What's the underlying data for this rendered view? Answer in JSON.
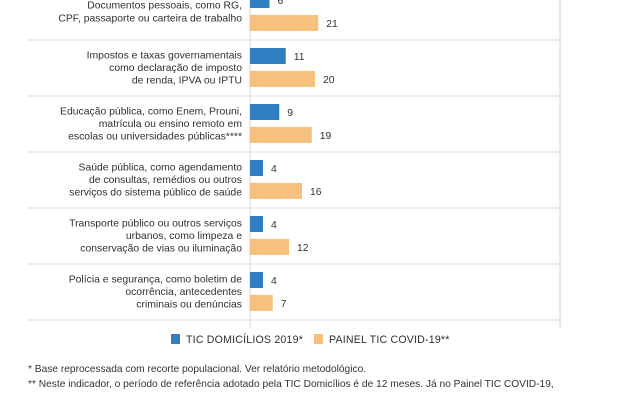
{
  "chart_data": {
    "type": "bar",
    "orientation": "horizontal",
    "categories": [
      [
        "Documentos pessoais, como RG,",
        "CPF, passaporte ou carteira de trabalho"
      ],
      [
        "Impostos e taxas governamentais",
        "como declaração de imposto",
        "de renda, IPVA ou IPTU"
      ],
      [
        "Educação pública, como Enem, Prouni,",
        "matrícula ou ensino remoto em",
        "escolas ou universidades públicas****"
      ],
      [
        "Saúde pública, como agendamento",
        "de consultas, remédios ou outros",
        "serviços do sistema público de saúde"
      ],
      [
        "Transporte público ou outros serviços",
        "urbanos, como limpeza e",
        "conservação de vias ou iluminação"
      ],
      [
        "Polícia e segurança, como boletim de",
        "ocorrência, antecedentes",
        "criminais ou denúncias"
      ]
    ],
    "series": [
      {
        "name": "TIC DOMICÍLIOS 2019*",
        "color": "#2f7fc1",
        "values": [
          6,
          11,
          9,
          4,
          4,
          4
        ]
      },
      {
        "name": "PAINEL TIC COVID-19**",
        "color": "#f6c07e",
        "values": [
          21,
          20,
          19,
          16,
          12,
          7
        ]
      }
    ],
    "xlim": [
      0,
      100
    ],
    "grid": false,
    "legend_position": "bottom"
  },
  "notes": [
    "* Base reprocessada com recorte populacional. Ver relatório metodológico.",
    "** Neste indicador, o período de referência adotado pela TIC Domicílios é de 12 meses. Já no Painel TIC COVID-19,"
  ]
}
